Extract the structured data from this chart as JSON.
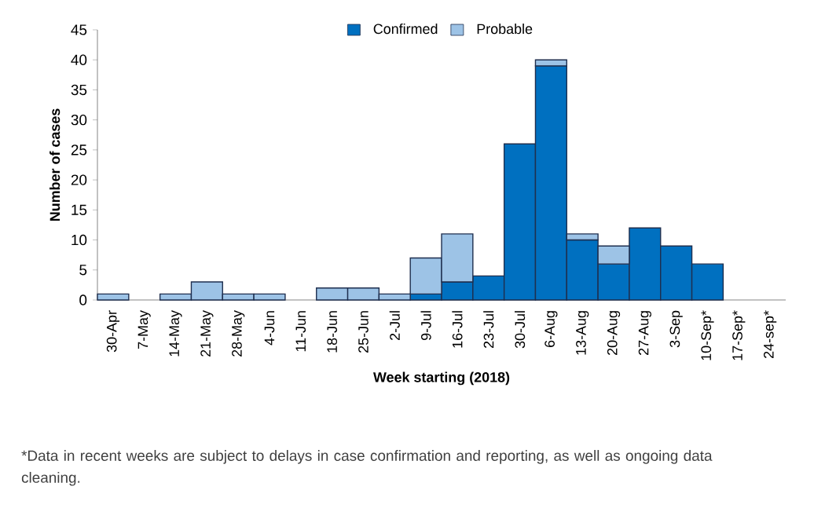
{
  "chart_data": {
    "type": "bar",
    "stacked": true,
    "xlabel": "Week starting (2018)",
    "ylabel": "Number of cases",
    "categories": [
      "30-Apr",
      "7-May",
      "14-May",
      "21-May",
      "28-May",
      "4-Jun",
      "11-Jun",
      "18-Jun",
      "25-Jun",
      "2-Jul",
      "9-Jul",
      "16-Jul",
      "23-Jul",
      "30-Jul",
      "6-Aug",
      "13-Aug",
      "20-Aug",
      "27-Aug",
      "3-Sep",
      "10-Sep*",
      "17-Sep*",
      "24-sep*"
    ],
    "series": [
      {
        "name": "Confirmed",
        "color": "#0070c0",
        "values": [
          null,
          null,
          null,
          null,
          null,
          null,
          null,
          null,
          null,
          null,
          1,
          3,
          4,
          26,
          39,
          10,
          6,
          12,
          9,
          6,
          null,
          null
        ]
      },
      {
        "name": "Probable",
        "color": "#9dc3e6",
        "values": [
          1,
          null,
          1,
          3,
          1,
          1,
          null,
          2,
          2,
          1,
          6,
          8,
          null,
          null,
          1,
          1,
          3,
          null,
          null,
          null,
          null,
          null
        ]
      }
    ],
    "ylim": [
      0,
      45
    ],
    "yticks": [
      0,
      5,
      10,
      15,
      20,
      25,
      30,
      35,
      40,
      45
    ],
    "legend": "top",
    "grid": false,
    "annotations": [
      "*Data in recent weeks are subject to delays in case confirmation and reporting, as well as ongoing data cleaning."
    ]
  }
}
